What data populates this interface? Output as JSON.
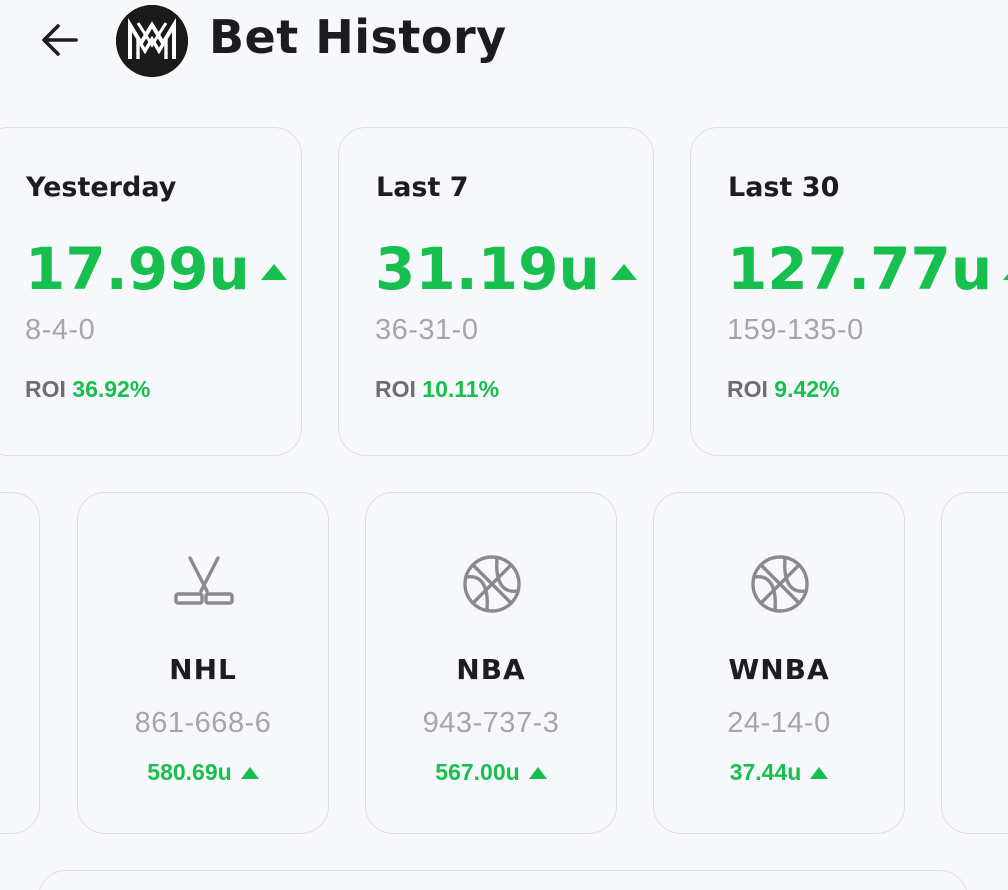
{
  "header": {
    "title": "Bet History",
    "back_icon": "arrow-left-icon",
    "logo_icon": "mm-logo-icon"
  },
  "colors": {
    "positive": "#17c04e",
    "muted": "#a6a6aa",
    "text": "#1d1d20",
    "background": "#f7f8fc",
    "border": "#dedfe3"
  },
  "summary": [
    {
      "label": "Yesterday",
      "value": "17.99u",
      "record": "8-4-0",
      "roi_label": "ROI",
      "roi": "36.92%",
      "trend": "up"
    },
    {
      "label": "Last 7",
      "value": "31.19u",
      "record": "36-31-0",
      "roi_label": "ROI",
      "roi": "10.11%",
      "trend": "up"
    },
    {
      "label": "Last 30",
      "value": "127.77u",
      "record": "159-135-0",
      "roi_label": "ROI",
      "roi": "9.42%",
      "trend": "up"
    }
  ],
  "leagues": [
    {
      "name": "NHL",
      "icon": "hockey-sticks-icon",
      "record": "861-668-6",
      "units": "580.69u",
      "trend": "up"
    },
    {
      "name": "NBA",
      "icon": "basketball-icon",
      "record": "943-737-3",
      "units": "567.00u",
      "trend": "up"
    },
    {
      "name": "WNBA",
      "icon": "basketball-icon",
      "record": "24-14-0",
      "units": "37.44u",
      "trend": "up"
    }
  ]
}
